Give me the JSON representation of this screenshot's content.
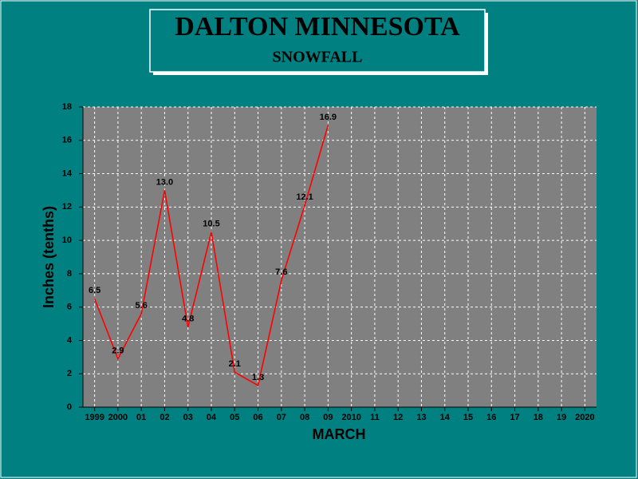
{
  "chart_data": {
    "type": "line",
    "title": "DALTON MINNESOTA",
    "subtitle": "SNOWFALL",
    "x_label": "MARCH",
    "y_label": "Inches (tenths)",
    "categories": [
      "1999",
      "2000",
      "01",
      "02",
      "03",
      "04",
      "05",
      "06",
      "07",
      "08",
      "09",
      "2010",
      "11",
      "12",
      "13",
      "14",
      "15",
      "16",
      "17",
      "18",
      "19",
      "2020"
    ],
    "values": [
      6.5,
      2.9,
      5.6,
      13.0,
      4.8,
      10.5,
      2.1,
      1.3,
      7.6,
      12.1,
      16.9,
      null,
      null,
      null,
      null,
      null,
      null,
      null,
      null,
      null,
      null,
      null
    ],
    "value_labels": [
      "6.5",
      "2.9",
      "5.6",
      "13.0",
      "4.8",
      "10.5",
      "2.1",
      "1.3",
      "7.6",
      "12.1",
      "16.9",
      null,
      null,
      null,
      null,
      null,
      null,
      null,
      null,
      null,
      null,
      null
    ],
    "color": "#ff0000",
    "ylim": [
      0,
      18
    ],
    "yticks": [
      0,
      2,
      4,
      6,
      8,
      10,
      12,
      14,
      16,
      18
    ],
    "grid": true
  }
}
